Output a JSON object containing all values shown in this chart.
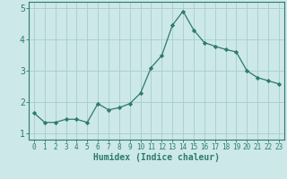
{
  "x": [
    0,
    1,
    2,
    3,
    4,
    5,
    6,
    7,
    8,
    9,
    10,
    11,
    12,
    13,
    14,
    15,
    16,
    17,
    18,
    19,
    20,
    21,
    22,
    23
  ],
  "y": [
    1.65,
    1.35,
    1.35,
    1.45,
    1.45,
    1.35,
    1.95,
    1.75,
    1.82,
    1.95,
    2.28,
    3.1,
    3.48,
    4.45,
    4.9,
    4.3,
    3.9,
    3.78,
    3.68,
    3.6,
    3.0,
    2.78,
    2.68,
    2.58
  ],
  "line_color": "#2d7a6e",
  "marker": "D",
  "marker_size": 2.2,
  "bg_color": "#cce8e8",
  "grid_color": "#aacccc",
  "xlabel": "Humidex (Indice chaleur)",
  "xlim": [
    -0.5,
    23.5
  ],
  "ylim": [
    0.8,
    5.2
  ],
  "yticks": [
    1,
    2,
    3,
    4,
    5
  ],
  "xticks": [
    0,
    1,
    2,
    3,
    4,
    5,
    6,
    7,
    8,
    9,
    10,
    11,
    12,
    13,
    14,
    15,
    16,
    17,
    18,
    19,
    20,
    21,
    22,
    23
  ],
  "xlabel_color": "#2d7a6e",
  "tick_color": "#2d7a6e",
  "spine_color": "#2d7a6e",
  "xlabel_fontsize": 7,
  "tick_fontsize": 5.5,
  "ytick_fontsize": 7
}
